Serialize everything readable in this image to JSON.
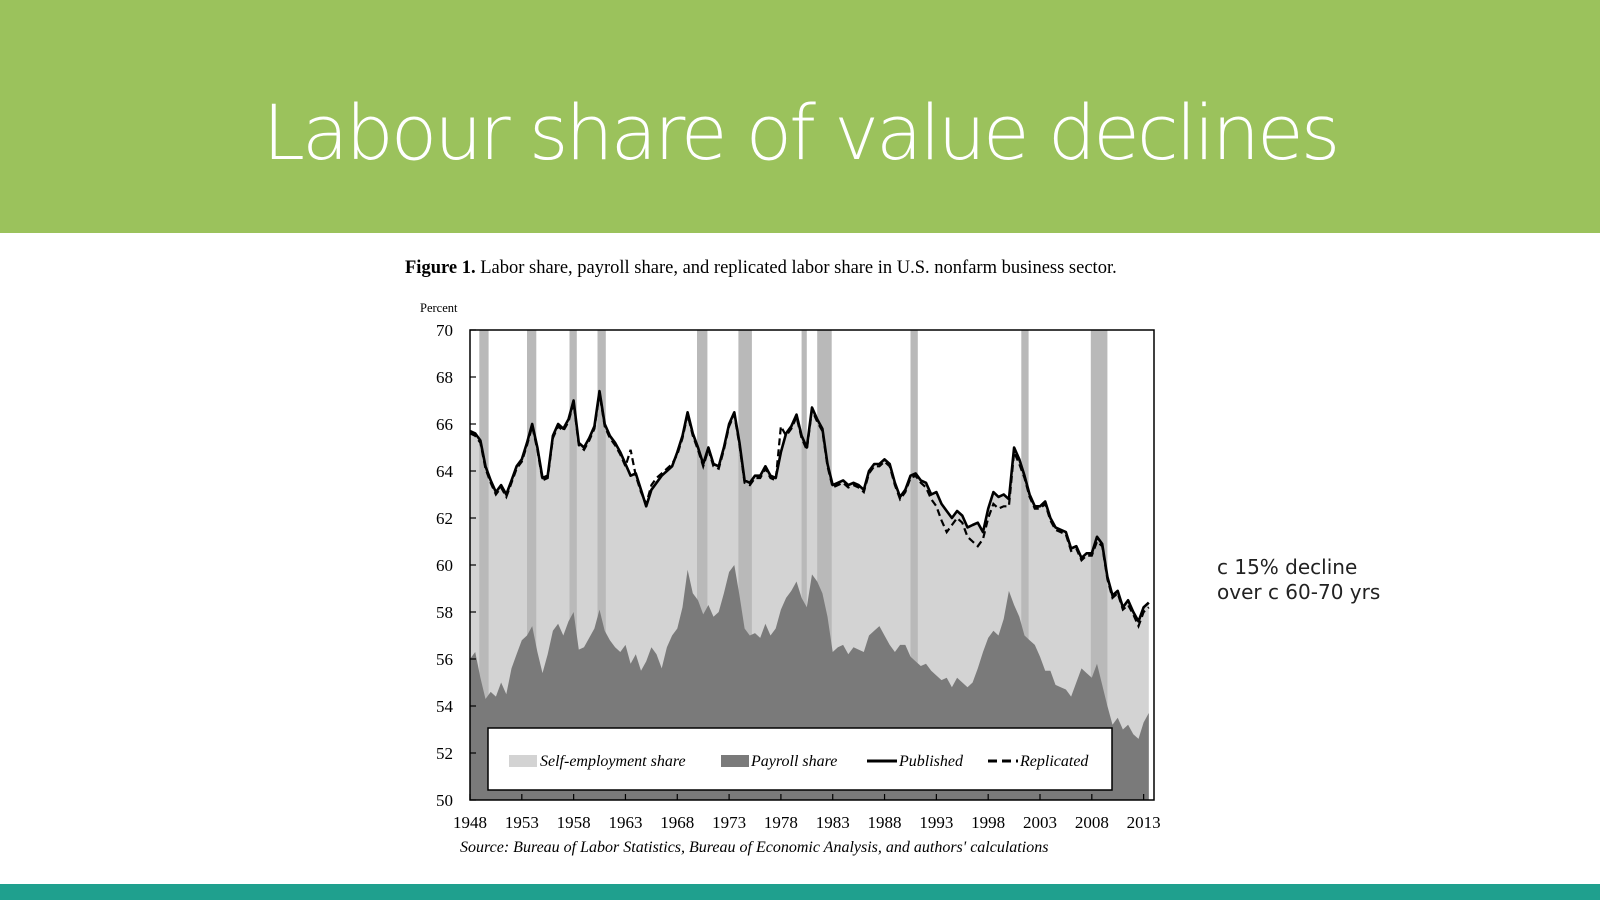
{
  "slide": {
    "title": "Labour share of value declines",
    "note_line1": "c 15% decline",
    "note_line2": "over c 60-70 yrs"
  },
  "figure": {
    "caption_bold": "Figure 1.",
    "caption_text": "Labor share, payroll share, and replicated labor share in U.S. nonfarm business sector.",
    "source": "Source: Bureau of Labor Statistics, Bureau of Economic Analysis, and authors' calculations"
  },
  "colors": {
    "banner": "#9bc25c",
    "footer": "#1fa08e",
    "self_employment": "#d3d3d3",
    "payroll": "#7a7a7a",
    "recession": "#b9b9b9"
  },
  "chart_data": {
    "type": "area",
    "title": "Labor share, payroll share, and replicated labor share in U.S. nonfarm business sector.",
    "ylabel": "Percent",
    "xlabel": "",
    "xlim": [
      1948,
      2014
    ],
    "ylim": [
      50,
      70
    ],
    "yticks": [
      50,
      52,
      54,
      56,
      58,
      60,
      62,
      64,
      66,
      68,
      70
    ],
    "xticks": [
      1948,
      1953,
      1958,
      1963,
      1968,
      1973,
      1978,
      1983,
      1988,
      1993,
      1998,
      2003,
      2008,
      2013
    ],
    "legend": {
      "position": "bottom",
      "entries": [
        "Self-employment share",
        "Payroll share",
        "Published",
        "Replicated"
      ]
    },
    "recessions": [
      [
        1948.9,
        1949.8
      ],
      [
        1953.5,
        1954.4
      ],
      [
        1957.6,
        1958.3
      ],
      [
        1960.3,
        1961.1
      ],
      [
        1969.9,
        1970.9
      ],
      [
        1973.9,
        1975.2
      ],
      [
        1980.0,
        1980.5
      ],
      [
        1981.5,
        1982.9
      ],
      [
        1990.5,
        1991.2
      ],
      [
        2001.2,
        2001.9
      ],
      [
        2007.9,
        2009.5
      ]
    ],
    "series": [
      {
        "name": "Published",
        "style": "solid",
        "x": [
          1948,
          1948.5,
          1949,
          1949.5,
          1950,
          1950.5,
          1951,
          1951.5,
          1952,
          1952.5,
          1953,
          1953.5,
          1954,
          1954.5,
          1955,
          1955.5,
          1956,
          1956.5,
          1957,
          1957.5,
          1958,
          1958.5,
          1959,
          1959.5,
          1960,
          1960.5,
          1961,
          1961.5,
          1962,
          1962.5,
          1963,
          1963.5,
          1964,
          1964.5,
          1965,
          1965.5,
          1966,
          1966.5,
          1967,
          1967.5,
          1968,
          1968.5,
          1969,
          1969.5,
          1970,
          1970.5,
          1971,
          1971.5,
          1972,
          1972.5,
          1973,
          1973.5,
          1974,
          1974.5,
          1975,
          1975.5,
          1976,
          1976.5,
          1977,
          1977.5,
          1978,
          1978.5,
          1979,
          1979.5,
          1980,
          1980.5,
          1981,
          1981.5,
          1982,
          1982.5,
          1983,
          1983.5,
          1984,
          1984.5,
          1985,
          1985.5,
          1986,
          1986.5,
          1987,
          1987.5,
          1988,
          1988.5,
          1989,
          1989.5,
          1990,
          1990.5,
          1991,
          1991.5,
          1992,
          1992.5,
          1993,
          1993.5,
          1994,
          1994.5,
          1995,
          1995.5,
          1996,
          1996.5,
          1997,
          1997.5,
          1998,
          1998.5,
          1999,
          1999.5,
          2000,
          2000.5,
          2001,
          2001.5,
          2002,
          2002.5,
          2003,
          2003.5,
          2004,
          2004.5,
          2005,
          2005.5,
          2006,
          2006.5,
          2007,
          2007.5,
          2008,
          2008.5,
          2009,
          2009.5,
          2010,
          2010.5,
          2011,
          2011.5,
          2012,
          2012.5,
          2013,
          2013.5
        ],
        "values": [
          65.7,
          65.6,
          65.3,
          64.2,
          63.6,
          63.1,
          63.4,
          63.0,
          63.6,
          64.2,
          64.5,
          65.2,
          66.0,
          65.0,
          63.7,
          63.8,
          65.5,
          66.0,
          65.8,
          66.2,
          67.0,
          65.2,
          65.0,
          65.4,
          65.9,
          67.4,
          66.0,
          65.5,
          65.2,
          64.8,
          64.3,
          63.8,
          63.9,
          63.2,
          62.5,
          63.2,
          63.5,
          63.8,
          64.0,
          64.2,
          64.8,
          65.5,
          66.5,
          65.6,
          65.0,
          64.3,
          65.0,
          64.3,
          64.2,
          65.0,
          66.0,
          66.5,
          65.2,
          63.6,
          63.5,
          63.8,
          63.8,
          64.2,
          63.8,
          63.7,
          64.8,
          65.6,
          65.9,
          66.4,
          65.5,
          65.0,
          66.7,
          66.2,
          65.8,
          64.3,
          63.4,
          63.5,
          63.6,
          63.4,
          63.5,
          63.4,
          63.2,
          64.0,
          64.3,
          64.3,
          64.5,
          64.3,
          63.5,
          62.9,
          63.2,
          63.8,
          63.9,
          63.6,
          63.5,
          63.0,
          63.1,
          62.6,
          62.3,
          62.0,
          62.3,
          62.1,
          61.6,
          61.7,
          61.8,
          61.4,
          62.4,
          63.1,
          62.9,
          63.0,
          62.8,
          65.0,
          64.5,
          63.8,
          63.0,
          62.5,
          62.5,
          62.7,
          62.0,
          61.6,
          61.5,
          61.4,
          60.7,
          60.8,
          60.3,
          60.5,
          60.5,
          61.2,
          60.9,
          59.5,
          58.7,
          58.9,
          58.2,
          58.5,
          58.0,
          57.6,
          58.2,
          58.4
        ]
      },
      {
        "name": "Replicated",
        "style": "dashed",
        "x": [
          1948,
          1948.5,
          1949,
          1949.5,
          1950,
          1950.5,
          1951,
          1951.5,
          1952,
          1952.5,
          1953,
          1953.5,
          1954,
          1954.5,
          1955,
          1955.5,
          1956,
          1956.5,
          1957,
          1957.5,
          1958,
          1958.5,
          1959,
          1959.5,
          1960,
          1960.5,
          1961,
          1961.5,
          1962,
          1962.5,
          1963,
          1963.5,
          1964,
          1964.5,
          1965,
          1965.5,
          1966,
          1966.5,
          1967,
          1967.5,
          1968,
          1968.5,
          1969,
          1969.5,
          1970,
          1970.5,
          1971,
          1971.5,
          1972,
          1972.5,
          1973,
          1973.5,
          1974,
          1974.5,
          1975,
          1975.5,
          1976,
          1976.5,
          1977,
          1977.5,
          1978,
          1978.5,
          1979,
          1979.5,
          1980,
          1980.5,
          1981,
          1981.5,
          1982,
          1982.5,
          1983,
          1983.5,
          1984,
          1984.5,
          1985,
          1985.5,
          1986,
          1986.5,
          1987,
          1987.5,
          1988,
          1988.5,
          1989,
          1989.5,
          1990,
          1990.5,
          1991,
          1991.5,
          1992,
          1992.5,
          1993,
          1993.5,
          1994,
          1994.5,
          1995,
          1995.5,
          1996,
          1996.5,
          1997,
          1997.5,
          1998,
          1998.5,
          1999,
          1999.5,
          2000,
          2000.5,
          2001,
          2001.5,
          2002,
          2002.5,
          2003,
          2003.5,
          2004,
          2004.5,
          2005,
          2005.5,
          2006,
          2006.5,
          2007,
          2007.5,
          2008,
          2008.5,
          2009,
          2009.5,
          2010,
          2010.5,
          2011,
          2011.5,
          2012,
          2012.5,
          2013,
          2013.5
        ],
        "values": [
          65.6,
          65.5,
          65.2,
          64.1,
          63.5,
          63.0,
          63.3,
          62.9,
          63.5,
          64.1,
          64.4,
          65.1,
          65.9,
          64.9,
          63.6,
          63.7,
          65.4,
          65.9,
          65.7,
          66.1,
          66.9,
          65.1,
          64.9,
          65.3,
          65.8,
          67.3,
          65.9,
          65.4,
          65.1,
          64.7,
          64.2,
          64.9,
          63.8,
          63.1,
          62.6,
          63.4,
          63.7,
          63.9,
          64.1,
          64.3,
          64.7,
          65.4,
          66.4,
          65.5,
          64.9,
          64.2,
          64.9,
          64.2,
          64.1,
          64.9,
          65.9,
          66.4,
          65.1,
          63.5,
          63.4,
          63.7,
          63.7,
          64.1,
          63.7,
          63.6,
          65.9,
          65.5,
          65.8,
          66.3,
          65.4,
          64.9,
          66.6,
          66.1,
          65.7,
          64.2,
          63.3,
          63.4,
          63.5,
          63.3,
          63.4,
          63.3,
          63.1,
          63.9,
          64.2,
          64.2,
          64.4,
          64.2,
          63.4,
          62.8,
          63.1,
          63.7,
          63.8,
          63.5,
          63.3,
          62.8,
          62.5,
          61.9,
          61.4,
          61.7,
          62.0,
          61.8,
          61.2,
          61.0,
          60.8,
          61.1,
          62.0,
          62.6,
          62.4,
          62.5,
          62.5,
          64.8,
          64.3,
          63.7,
          62.9,
          62.4,
          62.4,
          62.6,
          61.9,
          61.5,
          61.4,
          61.3,
          60.6,
          60.7,
          60.2,
          60.4,
          60.4,
          61.0,
          60.8,
          59.4,
          58.6,
          58.8,
          58.1,
          58.3,
          57.9,
          57.4,
          58.0,
          58.2
        ]
      },
      {
        "name": "Payroll share",
        "style": "area",
        "x": [
          1948,
          1948.5,
          1949,
          1949.5,
          1950,
          1950.5,
          1951,
          1951.5,
          1952,
          1952.5,
          1953,
          1953.5,
          1954,
          1954.5,
          1955,
          1955.5,
          1956,
          1956.5,
          1957,
          1957.5,
          1958,
          1958.5,
          1959,
          1959.5,
          1960,
          1960.5,
          1961,
          1961.5,
          1962,
          1962.5,
          1963,
          1963.5,
          1964,
          1964.5,
          1965,
          1965.5,
          1966,
          1966.5,
          1967,
          1967.5,
          1968,
          1968.5,
          1969,
          1969.5,
          1970,
          1970.5,
          1971,
          1971.5,
          1972,
          1972.5,
          1973,
          1973.5,
          1974,
          1974.5,
          1975,
          1975.5,
          1976,
          1976.5,
          1977,
          1977.5,
          1978,
          1978.5,
          1979,
          1979.5,
          1980,
          1980.5,
          1981,
          1981.5,
          1982,
          1982.5,
          1983,
          1983.5,
          1984,
          1984.5,
          1985,
          1985.5,
          1986,
          1986.5,
          1987,
          1987.5,
          1988,
          1988.5,
          1989,
          1989.5,
          1990,
          1990.5,
          1991,
          1991.5,
          1992,
          1992.5,
          1993,
          1993.5,
          1994,
          1994.5,
          1995,
          1995.5,
          1996,
          1996.5,
          1997,
          1997.5,
          1998,
          1998.5,
          1999,
          1999.5,
          2000,
          2000.5,
          2001,
          2001.5,
          2002,
          2002.5,
          2003,
          2003.5,
          2004,
          2004.5,
          2005,
          2005.5,
          2006,
          2006.5,
          2007,
          2007.5,
          2008,
          2008.5,
          2009,
          2009.5,
          2010,
          2010.5,
          2011,
          2011.5,
          2012,
          2012.5,
          2013,
          2013.5
        ],
        "values": [
          56.0,
          56.3,
          55.2,
          54.3,
          54.6,
          54.4,
          55.0,
          54.5,
          55.6,
          56.2,
          56.8,
          57.0,
          57.4,
          56.3,
          55.4,
          56.2,
          57.2,
          57.5,
          57.0,
          57.6,
          58.0,
          56.4,
          56.5,
          56.9,
          57.3,
          58.1,
          57.2,
          56.8,
          56.5,
          56.3,
          56.6,
          55.8,
          56.2,
          55.5,
          55.9,
          56.5,
          56.2,
          55.6,
          56.5,
          57.0,
          57.3,
          58.2,
          59.8,
          58.8,
          58.5,
          57.9,
          58.3,
          57.8,
          58.0,
          58.8,
          59.7,
          60.0,
          58.7,
          57.3,
          57.0,
          57.1,
          56.9,
          57.5,
          57.0,
          57.3,
          58.1,
          58.6,
          58.9,
          59.3,
          58.6,
          58.2,
          59.6,
          59.3,
          58.8,
          57.8,
          56.3,
          56.5,
          56.6,
          56.2,
          56.5,
          56.4,
          56.3,
          57.0,
          57.2,
          57.4,
          57.0,
          56.6,
          56.3,
          56.6,
          56.6,
          56.1,
          55.9,
          55.7,
          55.8,
          55.5,
          55.3,
          55.1,
          55.2,
          54.8,
          55.2,
          55.0,
          54.8,
          55.0,
          55.6,
          56.3,
          56.9,
          57.2,
          57.0,
          57.7,
          58.9,
          58.3,
          57.8,
          57.0,
          56.8,
          56.6,
          56.1,
          55.5,
          55.5,
          54.9,
          54.8,
          54.7,
          54.4,
          55.0,
          55.6,
          55.4,
          55.2,
          55.8,
          54.9,
          54.0,
          53.2,
          53.5,
          53.0,
          53.2,
          52.8,
          52.6,
          53.3,
          53.7
        ]
      }
    ]
  }
}
